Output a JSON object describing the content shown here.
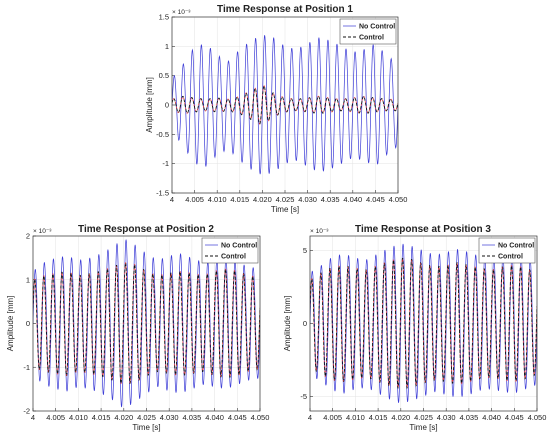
{
  "chart_data": [
    {
      "type": "line",
      "title": "Time Response at Position 1",
      "xlabel": "Time [s]",
      "ylabel": "Amplitude [mm]",
      "exponent": "× 10⁻³",
      "xlim": [
        4,
        4.05
      ],
      "ylim": [
        -1.5,
        1.5
      ],
      "xticks": [
        "4",
        "4.005",
        "4.010",
        "4.015",
        "4.020",
        "4.025",
        "4.030",
        "4.035",
        "4.040",
        "4.045",
        "4.050"
      ],
      "yticks": [
        "-1.5",
        "-1",
        "-0.5",
        "0",
        "0.5",
        "1",
        "1.5"
      ],
      "ytick_values": [
        -1.5,
        -1,
        -0.5,
        0,
        0.5,
        1,
        1.5
      ],
      "legend": [
        "No Control",
        "Control"
      ],
      "legend_position": "top-right",
      "grid": true,
      "series": [
        {
          "name": "No Control",
          "color": "#3b3bd6",
          "x": [
            4.0,
            4.0025,
            4.005,
            4.0075,
            4.01,
            4.0125,
            4.015,
            4.0175,
            4.02,
            4.0225,
            4.025,
            4.0275,
            4.03,
            4.0325,
            4.035,
            4.0375,
            4.04,
            4.0425,
            4.045,
            4.0475,
            4.05
          ],
          "envelope": [
            0.45,
            0.7,
            1.0,
            1.05,
            0.85,
            0.75,
            0.95,
            1.1,
            1.2,
            1.15,
            1.0,
            0.95,
            1.05,
            1.15,
            1.1,
            1.0,
            0.9,
            0.95,
            1.05,
            0.85,
            0.7
          ],
          "frequency_hz": 500
        },
        {
          "name": "Control",
          "color": "#111111",
          "x": [
            4.0,
            4.0025,
            4.005,
            4.0075,
            4.01,
            4.0125,
            4.015,
            4.0175,
            4.02,
            4.0225,
            4.025,
            4.0275,
            4.03,
            4.0325,
            4.035,
            4.0375,
            4.04,
            4.0425,
            4.045,
            4.0475,
            4.05
          ],
          "envelope": [
            0.1,
            0.15,
            0.12,
            0.1,
            0.12,
            0.1,
            0.15,
            0.25,
            0.35,
            0.2,
            0.12,
            0.1,
            0.12,
            0.15,
            0.12,
            0.1,
            0.12,
            0.15,
            0.12,
            0.1,
            0.1
          ],
          "frequency_hz": 500
        }
      ]
    },
    {
      "type": "line",
      "title": "Time Response at Position 2",
      "xlabel": "Time [s]",
      "ylabel": "Amplitude [mm]",
      "exponent": "× 10⁻³",
      "xlim": [
        4,
        4.05
      ],
      "ylim": [
        -2,
        2
      ],
      "xticks": [
        "4",
        "4.005",
        "4.010",
        "4.015",
        "4.020",
        "4.025",
        "4.030",
        "4.035",
        "4.040",
        "4.045",
        "4.050"
      ],
      "yticks": [
        "-2",
        "-1",
        "0",
        "1",
        "2"
      ],
      "ytick_values": [
        -2,
        -1,
        0,
        1,
        2
      ],
      "legend": [
        "No Control",
        "Control"
      ],
      "legend_position": "top-right",
      "grid": true,
      "series": [
        {
          "name": "No Control",
          "color": "#3b3bd6",
          "x": [
            4.0,
            4.0025,
            4.005,
            4.0075,
            4.01,
            4.0125,
            4.015,
            4.0175,
            4.02,
            4.0225,
            4.025,
            4.0275,
            4.03,
            4.0325,
            4.035,
            4.0375,
            4.04,
            4.0425,
            4.045,
            4.0475,
            4.05
          ],
          "envelope": [
            1.2,
            1.4,
            1.5,
            1.55,
            1.45,
            1.5,
            1.6,
            1.75,
            1.95,
            1.8,
            1.6,
            1.45,
            1.55,
            1.6,
            1.5,
            1.4,
            1.45,
            1.5,
            1.4,
            1.3,
            1.25
          ],
          "frequency_hz": 500
        },
        {
          "name": "Control",
          "color": "#111111",
          "x": [
            4.0,
            4.0025,
            4.005,
            4.0075,
            4.01,
            4.0125,
            4.015,
            4.0175,
            4.02,
            4.0225,
            4.025,
            4.0275,
            4.03,
            4.0325,
            4.035,
            4.0375,
            4.04,
            4.0425,
            4.045,
            4.0475,
            4.05
          ],
          "envelope": [
            1.0,
            1.1,
            1.15,
            1.2,
            1.1,
            1.15,
            1.2,
            1.3,
            1.4,
            1.35,
            1.2,
            1.1,
            1.15,
            1.2,
            1.15,
            1.1,
            1.2,
            1.25,
            1.2,
            1.1,
            1.05
          ],
          "frequency_hz": 500
        }
      ]
    },
    {
      "type": "line",
      "title": "Time Response at Position 3",
      "xlabel": "Time [s]",
      "ylabel": "Amplitude [mm]",
      "exponent": "× 10⁻³",
      "xlim": [
        4,
        4.05
      ],
      "ylim": [
        -6,
        6
      ],
      "xticks": [
        "4",
        "4.005",
        "4.010",
        "4.015",
        "4.020",
        "4.025",
        "4.030",
        "4.035",
        "4.040",
        "4.045",
        "4.050"
      ],
      "yticks": [
        "-5",
        "0",
        "5"
      ],
      "ytick_values": [
        -5,
        0,
        5
      ],
      "legend": [
        "No Control",
        "Control"
      ],
      "legend_position": "top-right",
      "grid": true,
      "series": [
        {
          "name": "No Control",
          "color": "#3b3bd6",
          "x": [
            4.0,
            4.0025,
            4.005,
            4.0075,
            4.01,
            4.0125,
            4.015,
            4.0175,
            4.02,
            4.0225,
            4.025,
            4.0275,
            4.03,
            4.0325,
            4.035,
            4.0375,
            4.04,
            4.0425,
            4.045,
            4.0475,
            4.05
          ],
          "envelope": [
            3.5,
            4.0,
            4.6,
            4.8,
            4.5,
            4.4,
            4.8,
            5.2,
            5.5,
            5.3,
            5.0,
            4.7,
            4.9,
            5.1,
            4.9,
            4.6,
            4.5,
            4.7,
            4.8,
            4.5,
            4.2
          ],
          "frequency_hz": 500
        },
        {
          "name": "Control",
          "color": "#111111",
          "x": [
            4.0,
            4.0025,
            4.005,
            4.0075,
            4.01,
            4.0125,
            4.015,
            4.0175,
            4.02,
            4.0225,
            4.025,
            4.0275,
            4.03,
            4.0325,
            4.035,
            4.0375,
            4.04,
            4.0425,
            4.045,
            4.0475,
            4.05
          ],
          "envelope": [
            3.0,
            3.5,
            3.9,
            4.0,
            3.8,
            3.7,
            4.0,
            4.3,
            4.5,
            4.4,
            4.1,
            3.9,
            4.0,
            4.2,
            4.0,
            3.8,
            3.7,
            3.9,
            4.0,
            3.8,
            3.5
          ],
          "frequency_hz": 500
        }
      ]
    }
  ]
}
